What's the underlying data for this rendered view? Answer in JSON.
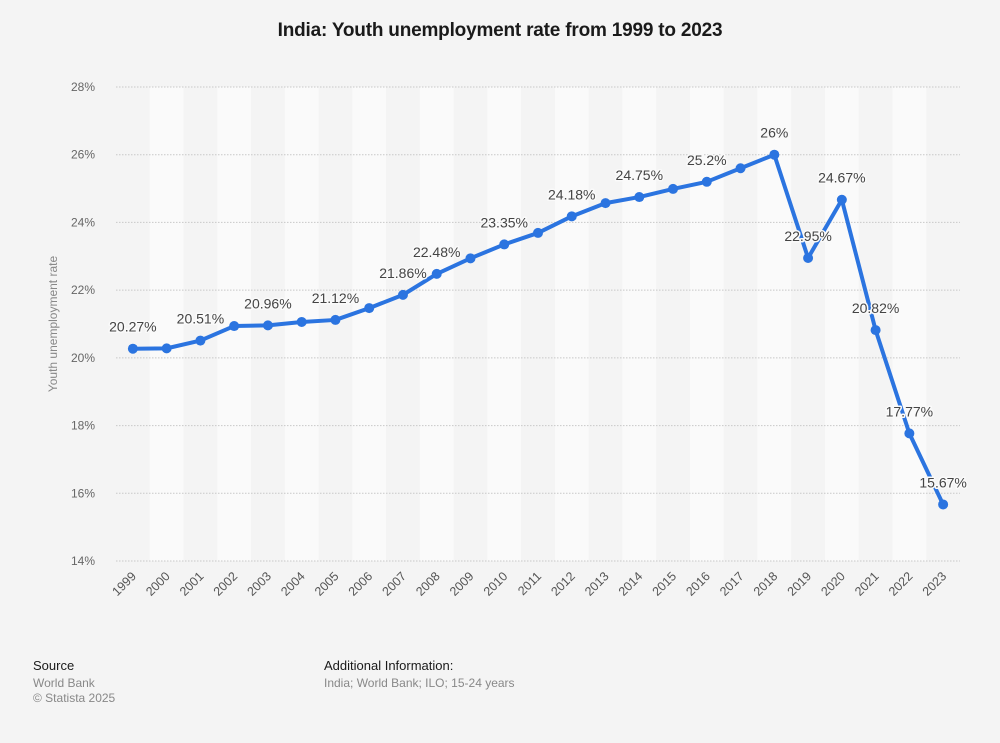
{
  "chart_data": {
    "type": "line",
    "title": "India: Youth unemployment rate from 1999 to 2023",
    "xlabel": "",
    "ylabel": "Youth unemployment rate",
    "ylim": [
      14,
      28
    ],
    "yticks": [
      14,
      16,
      18,
      20,
      22,
      24,
      26,
      28
    ],
    "ytick_labels": [
      "14%",
      "16%",
      "18%",
      "20%",
      "22%",
      "24%",
      "26%",
      "28%"
    ],
    "grid": true,
    "legend": "none",
    "series_color": "#2b74e0",
    "categories": [
      "1999",
      "2000",
      "2001",
      "2002",
      "2003",
      "2004",
      "2005",
      "2006",
      "2007",
      "2008",
      "2009",
      "2010",
      "2011",
      "2012",
      "2013",
      "2014",
      "2015",
      "2016",
      "2017",
      "2018",
      "2019",
      "2020",
      "2021",
      "2022",
      "2023"
    ],
    "series": [
      {
        "name": "Youth unemployment rate",
        "values": [
          20.27,
          20.28,
          20.51,
          20.94,
          20.96,
          21.06,
          21.12,
          21.47,
          21.86,
          22.48,
          22.94,
          23.35,
          23.69,
          24.18,
          24.57,
          24.75,
          24.99,
          25.2,
          25.6,
          26,
          22.95,
          24.67,
          20.82,
          17.77,
          15.67
        ]
      }
    ],
    "data_labels": [
      {
        "index": 0,
        "text": "20.27%"
      },
      {
        "index": 2,
        "text": "20.51%"
      },
      {
        "index": 4,
        "text": "20.96%"
      },
      {
        "index": 6,
        "text": "21.12%"
      },
      {
        "index": 8,
        "text": "21.86%"
      },
      {
        "index": 9,
        "text": "22.48%"
      },
      {
        "index": 11,
        "text": "23.35%"
      },
      {
        "index": 13,
        "text": "24.18%"
      },
      {
        "index": 15,
        "text": "24.75%"
      },
      {
        "index": 17,
        "text": "25.2%"
      },
      {
        "index": 19,
        "text": "26%"
      },
      {
        "index": 20,
        "text": "22.95%"
      },
      {
        "index": 21,
        "text": "24.67%"
      },
      {
        "index": 22,
        "text": "20.82%"
      },
      {
        "index": 23,
        "text": "17.77%"
      },
      {
        "index": 24,
        "text": "15.67%"
      }
    ]
  },
  "footer": {
    "source_heading": "Source",
    "source_lines": [
      "World Bank",
      "© Statista 2025"
    ],
    "additional_heading": "Additional Information:",
    "additional_text": "India; World Bank; ILO; 15-24 years"
  }
}
